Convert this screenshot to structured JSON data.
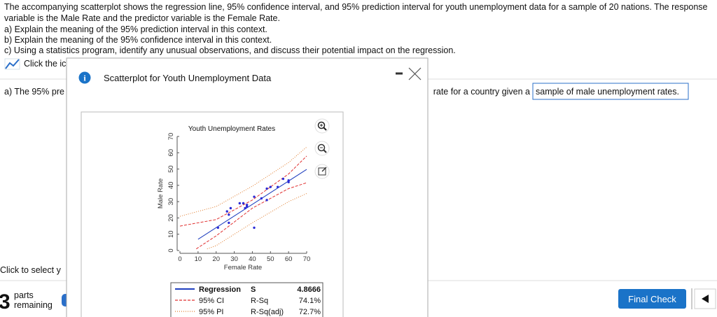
{
  "question": {
    "lines": [
      "The accompanying scatterplot shows the regression line, 95% confidence interval, and 95% prediction interval for youth unemployment data for a sample of 20 nations. The response",
      "variable is the Male Rate and the predictor variable is the Female Rate.",
      "a) Explain the meaning of the 95% prediction interval in this context.",
      "b) Explain the meaning of the 95% confidence interval in this context.",
      "c) Using a statistics program, identify any unusual observations, and discuss their potential impact on the regression."
    ],
    "hint": "Click the ic"
  },
  "answer": {
    "prompt_start": "a) The 95% pre",
    "prompt_end": "rate for a country given a",
    "selected": "sample of male unemployment rates."
  },
  "select_hint": "Click to select y",
  "parts": {
    "count": 3,
    "label_1": "parts",
    "label_2": "remaining"
  },
  "button": "Final Check",
  "modal": {
    "title": "Scatterplot for Youth Unemployment Data"
  },
  "chart_data": {
    "type": "scatter",
    "title": "Youth Unemployment Rates",
    "x_label": "Female Rate",
    "y_label": "Male Rate",
    "xlim": [
      0,
      70
    ],
    "ylim": [
      0,
      70
    ],
    "xticks": [
      0,
      10,
      20,
      30,
      40,
      50,
      60,
      70
    ],
    "yticks": [
      0,
      10,
      20,
      30,
      40,
      50,
      60,
      70
    ],
    "points": {
      "color": "#2b2bd6",
      "x": [
        21,
        27,
        26,
        27,
        28,
        33,
        35,
        37,
        36,
        37,
        41,
        41,
        45,
        48,
        48,
        50,
        54,
        57,
        60,
        60
      ],
      "values": [
        14,
        17,
        24,
        22,
        26,
        29,
        29,
        28,
        26,
        27,
        33,
        14,
        32,
        31,
        38,
        39,
        39,
        44,
        43,
        42
      ]
    },
    "series": [
      {
        "name": "Regression",
        "color": "#1f3fbf",
        "dash": "solid",
        "lines": [
          {
            "x": [
              10,
              70
            ],
            "values": [
              6.9,
              49.8
            ]
          }
        ]
      },
      {
        "name": "95% CI",
        "color": "#e03030",
        "dash": "dashed",
        "lines": [
          {
            "x": [
              0,
              20,
              40,
              60,
              70
            ],
            "values": [
              15,
              19,
              31,
              47,
              58
            ]
          },
          {
            "x": [
              9,
              20,
              40,
              60,
              70
            ],
            "values": [
              1,
              9,
              26,
              38,
              41.6
            ]
          }
        ]
      },
      {
        "name": "95% PI",
        "color": "#e07a2a",
        "dash": "dotted",
        "lines": [
          {
            "x": [
              0,
              20,
              40,
              60,
              70
            ],
            "values": [
              21,
              27,
              39.5,
              54,
              63.5
            ]
          },
          {
            "x": [
              15,
              20,
              40,
              60,
              70
            ],
            "values": [
              1,
              3,
              17,
              30,
              35
            ]
          }
        ]
      }
    ],
    "stats": [
      {
        "name": "S",
        "value": "4.8666"
      },
      {
        "name": "R-Sq",
        "value": "74.1%"
      },
      {
        "name": "R-Sq(adj)",
        "value": "72.7%"
      }
    ]
  }
}
